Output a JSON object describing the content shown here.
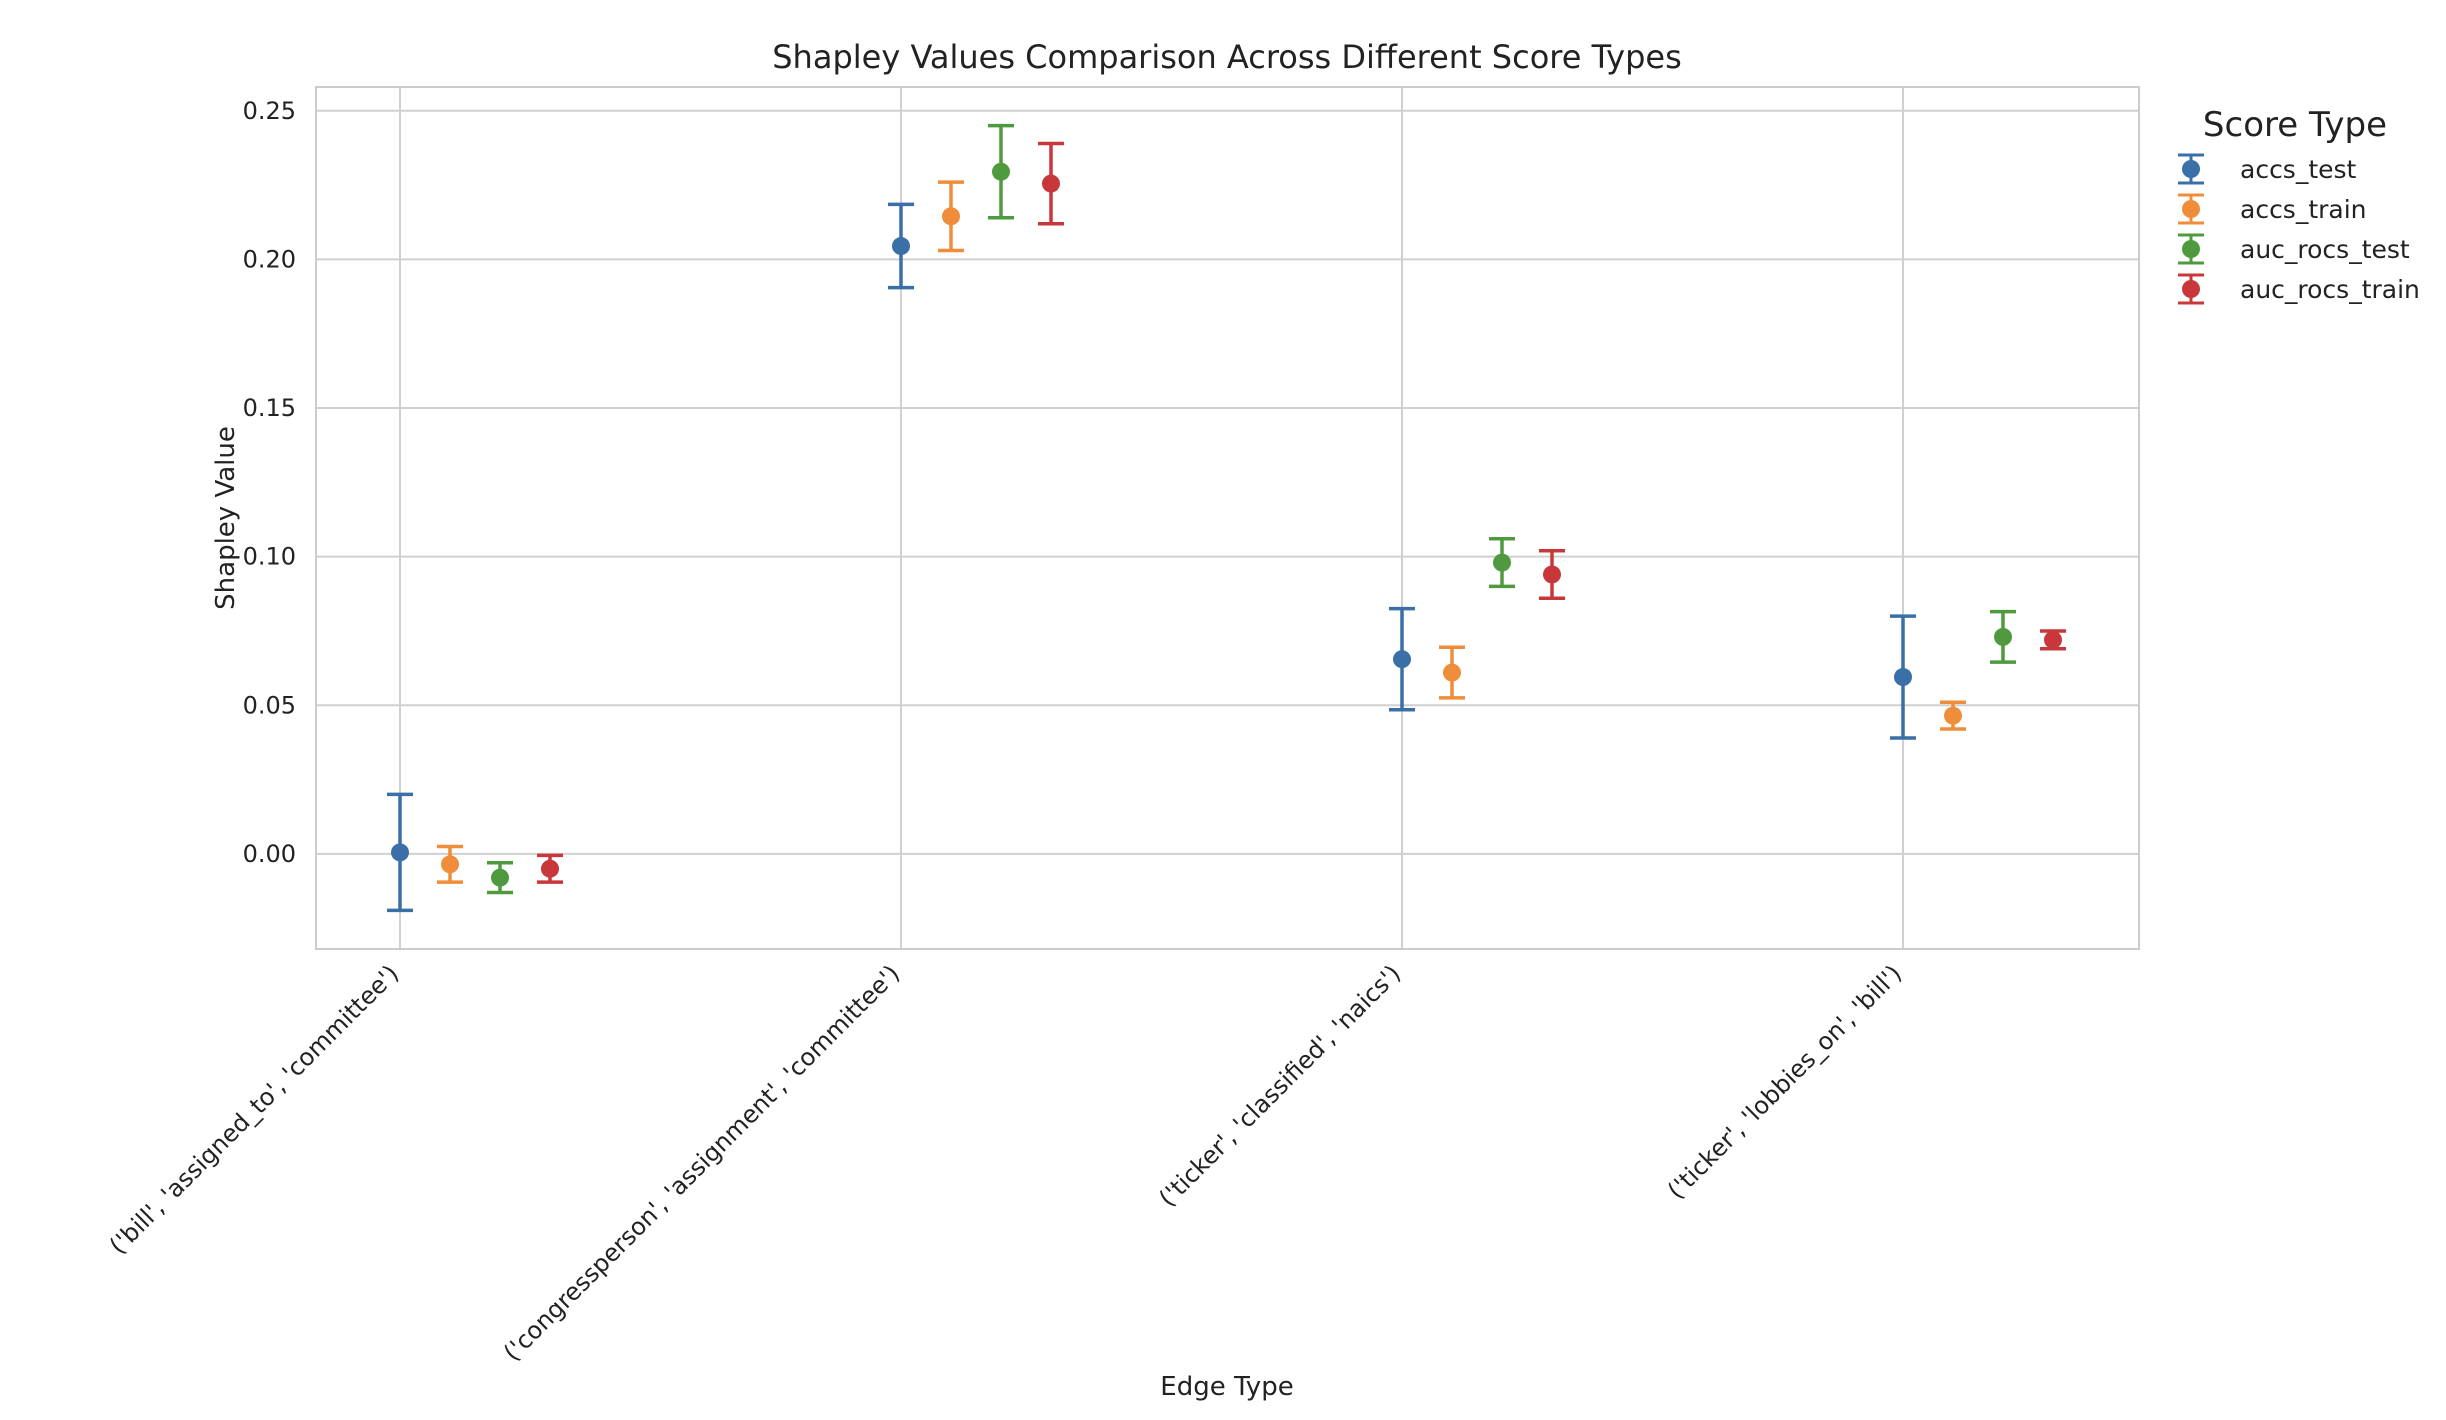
{
  "chart_data": {
    "type": "scatter",
    "title": "Shapley Values Comparison Across Different Score Types",
    "xlabel": "Edge Type",
    "ylabel": "Shapley Value",
    "ylim": [
      -0.032,
      0.258
    ],
    "yticks": [
      0.0,
      0.05,
      0.1,
      0.15,
      0.2,
      0.25
    ],
    "ytick_labels": [
      "0.00",
      "0.05",
      "0.10",
      "0.15",
      "0.20",
      "0.25"
    ],
    "categories": [
      "('bill', 'assigned_to', 'committee')",
      "('congressperson', 'assignment', 'committee')",
      "('ticker', 'classified', 'naics')",
      "('ticker', 'lobbies_on', 'bill')"
    ],
    "grid": true,
    "legend": {
      "title": "Score Type",
      "placement": "outside-top-right"
    },
    "series": [
      {
        "name": "accs_test",
        "color": "#3a6fa8",
        "values": [
          0.0005,
          0.2045,
          0.0655,
          0.0595
        ],
        "errors": [
          0.0195,
          0.014,
          0.017,
          0.0205
        ]
      },
      {
        "name": "accs_train",
        "color": "#ef8d3a",
        "values": [
          -0.0035,
          0.2145,
          0.061,
          0.0465
        ],
        "errors": [
          0.006,
          0.0115,
          0.0085,
          0.0045
        ]
      },
      {
        "name": "auc_rocs_test",
        "color": "#4f9a3e",
        "values": [
          -0.008,
          0.2295,
          0.098,
          0.073
        ],
        "errors": [
          0.005,
          0.0155,
          0.008,
          0.0085
        ]
      },
      {
        "name": "auc_rocs_train",
        "color": "#c8383a",
        "values": [
          -0.005,
          0.2255,
          0.094,
          0.072
        ],
        "errors": [
          0.0045,
          0.0135,
          0.008,
          0.003
        ]
      }
    ]
  }
}
